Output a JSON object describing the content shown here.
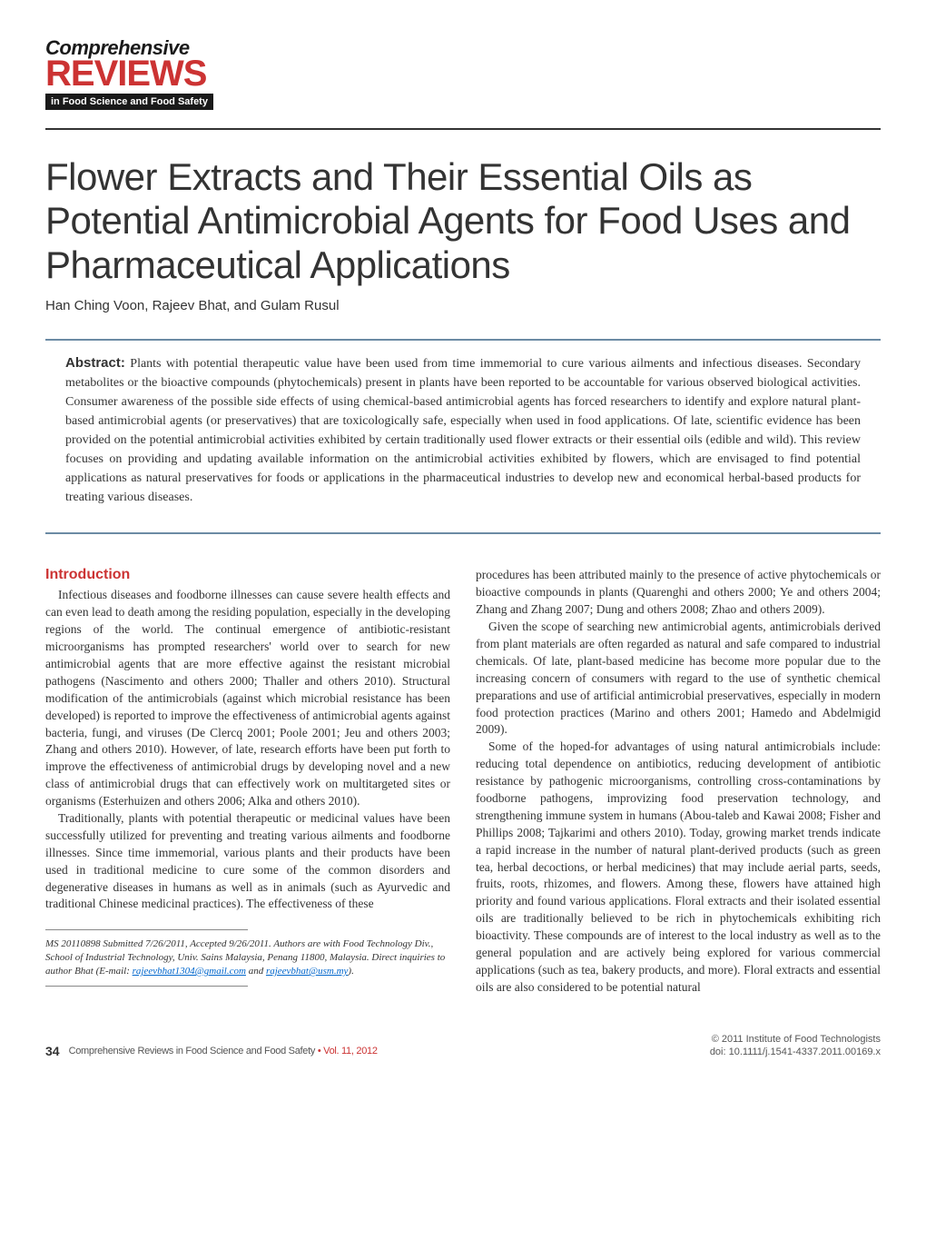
{
  "logo": {
    "word1": "Comprehensive",
    "word2": "REVIEWS",
    "tagline": "in Food Science and Food Safety"
  },
  "article": {
    "title": "Flower Extracts and Their Essential Oils as Potential Antimicrobial Agents for Food Uses and Pharmaceutical Applications",
    "authors": "Han Ching Voon, Rajeev Bhat, and Gulam Rusul"
  },
  "abstract": {
    "label": "Abstract:",
    "text": "Plants with potential therapeutic value have been used from time immemorial to cure various ailments and infectious diseases. Secondary metabolites or the bioactive compounds (phytochemicals) present in plants have been reported to be accountable for various observed biological activities. Consumer awareness of the possible side effects of using chemical-based antimicrobial agents has forced researchers to identify and explore natural plant-based antimicrobial agents (or preservatives) that are toxicologically safe, especially when used in food applications. Of late, scientific evidence has been provided on the potential antimicrobial activities exhibited by certain traditionally used flower extracts or their essential oils (edible and wild). This review focuses on providing and updating available information on the antimicrobial activities exhibited by flowers, which are envisaged to find potential applications as natural preservatives for foods or applications in the pharmaceutical industries to develop new and economical herbal-based products for treating various diseases."
  },
  "body": {
    "intro_heading": "Introduction",
    "col1_p1": "Infectious diseases and foodborne illnesses can cause severe health effects and can even lead to death among the residing population, especially in the developing regions of the world. The continual emergence of antibiotic-resistant microorganisms has prompted researchers' world over to search for new antimicrobial agents that are more effective against the resistant microbial pathogens (Nascimento and others 2000; Thaller and others 2010). Structural modification of the antimicrobials (against which microbial resistance has been developed) is reported to improve the effectiveness of antimicrobial agents against bacteria, fungi, and viruses (De Clercq 2001; Poole 2001; Jeu and others 2003; Zhang and others 2010). However, of late, research efforts have been put forth to improve the effectiveness of antimicrobial drugs by developing novel and a new class of antimicrobial drugs that can effectively work on multitargeted sites or organisms (Esterhuizen and others 2006; Alka and others 2010).",
    "col1_p2": "Traditionally, plants with potential therapeutic or medicinal values have been successfully utilized for preventing and treating various ailments and foodborne illnesses. Since time immemorial, various plants and their products have been used in traditional medicine to cure some of the common disorders and degenerative diseases in humans as well as in animals (such as Ayurvedic and traditional Chinese medicinal practices). The effectiveness of these",
    "col2_p1": "procedures has been attributed mainly to the presence of active phytochemicals or bioactive compounds in plants (Quarenghi and others 2000; Ye and others 2004; Zhang and Zhang 2007; Dung and others 2008; Zhao and others 2009).",
    "col2_p2": "Given the scope of searching new antimicrobial agents, antimicrobials derived from plant materials are often regarded as natural and safe compared to industrial chemicals. Of late, plant-based medicine has become more popular due to the increasing concern of consumers with regard to the use of synthetic chemical preparations and use of artificial antimicrobial preservatives, especially in modern food protection practices (Marino and others 2001; Hamedo and Abdelmigid 2009).",
    "col2_p3": "Some of the hoped-for advantages of using natural antimicrobials include: reducing total dependence on antibiotics, reducing development of antibiotic resistance by pathogenic microorganisms, controlling cross-contaminations by foodborne pathogens, improvizing food preservation technology, and strengthening immune system in humans (Abou-taleb and Kawai 2008; Fisher and Phillips 2008; Tajkarimi and others 2010). Today, growing market trends indicate a rapid increase in the number of natural plant-derived products (such as green tea, herbal decoctions, or herbal medicines) that may include aerial parts, seeds, fruits, roots, rhizomes, and flowers. Among these, flowers have attained high priority and found various applications. Floral extracts and their isolated essential oils are traditionally believed to be rich in phytochemicals exhibiting rich bioactivity. These compounds are of interest to the local industry as well as to the general population and are actively being explored for various commercial applications (such as tea, bakery products, and more). Floral extracts and essential oils are also considered to be potential natural"
  },
  "author_note": {
    "ms_prefix": "MS 20110898 Submitted 7/26/2011, Accepted 9/26/2011.",
    "text_after": " Authors are with Food Technology Div., School of Industrial Technology, Univ. Sains Malaysia, Penang 11800, Malaysia. Direct inquiries to author Bhat (E-mail: ",
    "email1": "rajeevbhat1304@gmail.com",
    "sep": " and ",
    "email2": "rajeevbhat@usm.my",
    "close": ")."
  },
  "footer": {
    "page": "34",
    "journal": "Comprehensive Reviews in Food Science and Food Safety",
    "bullet": " • ",
    "vol": "Vol. 11, 2012",
    "copyright": "© 2011 Institute of Food Technologists",
    "doi": "doi: 10.1111/j.1541-4337.2011.00169.x"
  },
  "colors": {
    "accent_red": "#cc3333",
    "rule_blue": "#6b8ba4",
    "text": "#333333",
    "link": "#0066cc"
  }
}
